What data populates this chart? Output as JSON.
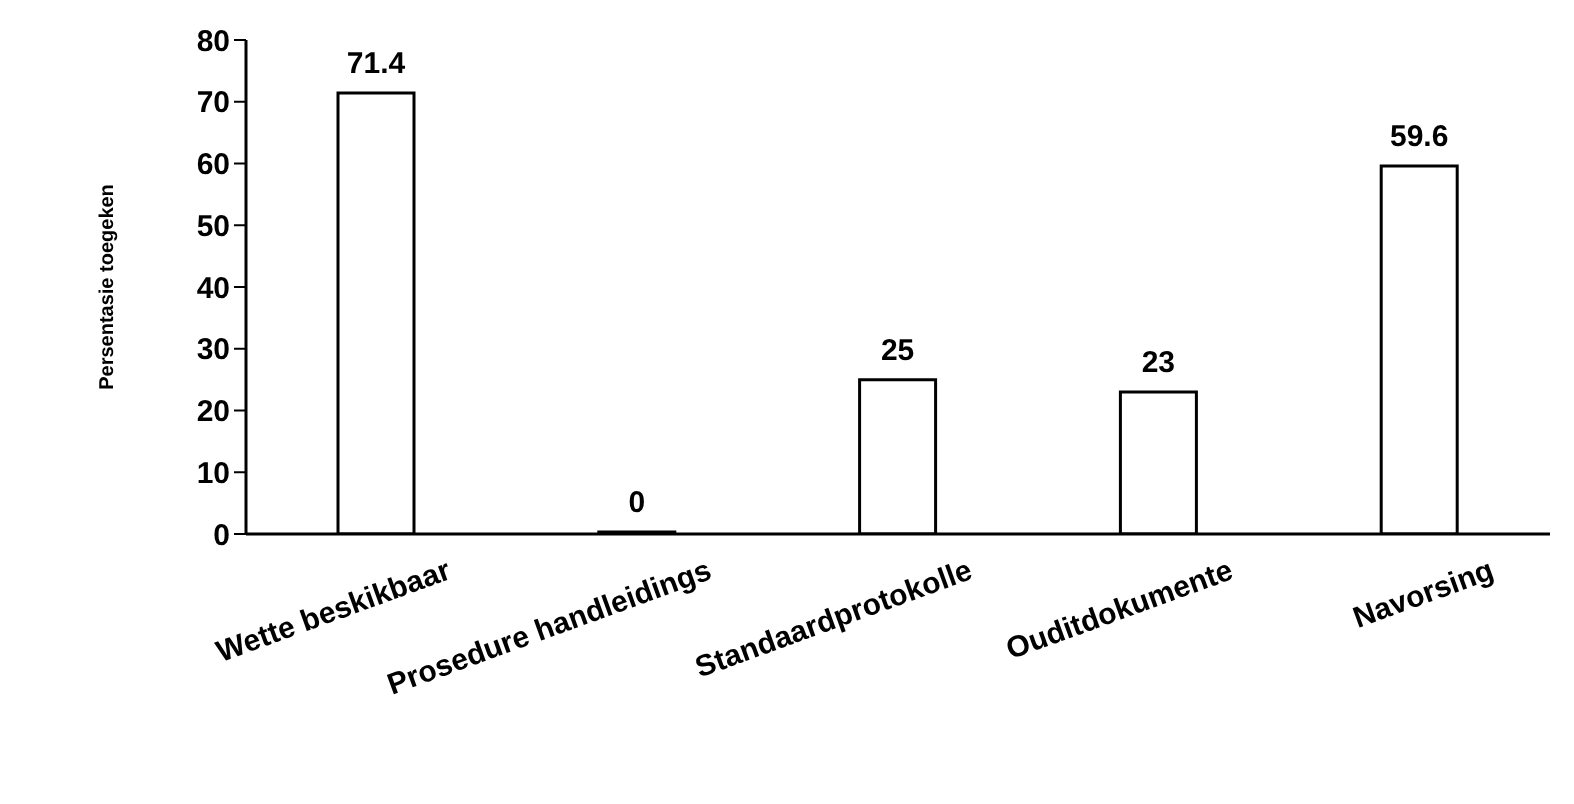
{
  "chart_data": {
    "type": "bar",
    "ylabel": "Persentasie toegeken",
    "categories": [
      "Wette beskikbaar",
      "Prosedure handleidings",
      "Standaardprotokolle",
      "Ouditdokumente",
      "Navorsing"
    ],
    "values": [
      71.4,
      0,
      25,
      23,
      59.6
    ],
    "color": "#ffffff",
    "ylim": [
      0,
      80
    ],
    "yticks": [
      0,
      10,
      20,
      30,
      40,
      50,
      60,
      70,
      80
    ],
    "grid": false,
    "data_labels": true
  }
}
